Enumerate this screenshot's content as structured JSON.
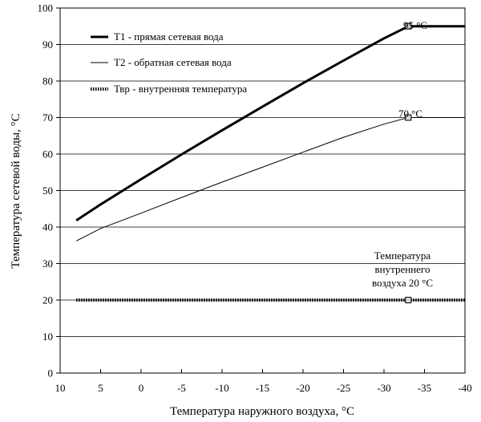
{
  "chart_data": {
    "type": "line",
    "xlabel": "Температура наружного воздуха, °С",
    "ylabel": "Температура сетевой воды, °С",
    "xlim": [
      10,
      -40
    ],
    "ylim": [
      0,
      100
    ],
    "x_ticks": [
      10,
      5,
      0,
      -5,
      -10,
      -15,
      -20,
      -25,
      -30,
      -35,
      -40
    ],
    "y_ticks": [
      0,
      10,
      20,
      30,
      40,
      50,
      60,
      70,
      80,
      90,
      100
    ],
    "x_reversed": true,
    "grid": "horizontal",
    "legend_position": "top-left",
    "series": [
      {
        "name": "Т1 - прямая сетевая вода",
        "style": "thick",
        "x": [
          8,
          5,
          0,
          -5,
          -10,
          -15,
          -20,
          -25,
          -30,
          -33,
          -40
        ],
        "y": [
          41.8,
          46.2,
          53.1,
          59.9,
          66.5,
          73,
          79.4,
          85.6,
          91.7,
          95,
          95
        ]
      },
      {
        "name": "Т2 - обратная сетевая вода",
        "style": "thin",
        "x": [
          8,
          5,
          0,
          -5,
          -10,
          -15,
          -20,
          -25,
          -30,
          -33,
          -40
        ],
        "y": [
          36.2,
          39.6,
          43.8,
          48.1,
          52.3,
          56.4,
          60.5,
          64.6,
          68.2,
          70,
          70
        ]
      },
      {
        "name": "Твр - внутренняя температура",
        "style": "dotted-thick",
        "x": [
          8,
          -40
        ],
        "y": [
          20,
          20
        ]
      }
    ],
    "markers": [
      {
        "x": -33,
        "y": 95
      },
      {
        "x": -33,
        "y": 70
      },
      {
        "x": -33,
        "y": 20
      }
    ],
    "annotations": {
      "t1_break": "95 °С",
      "t2_break": "70 °С",
      "indoor": [
        "Температура",
        "внутреннего",
        "воздуха 20 °С"
      ]
    }
  }
}
